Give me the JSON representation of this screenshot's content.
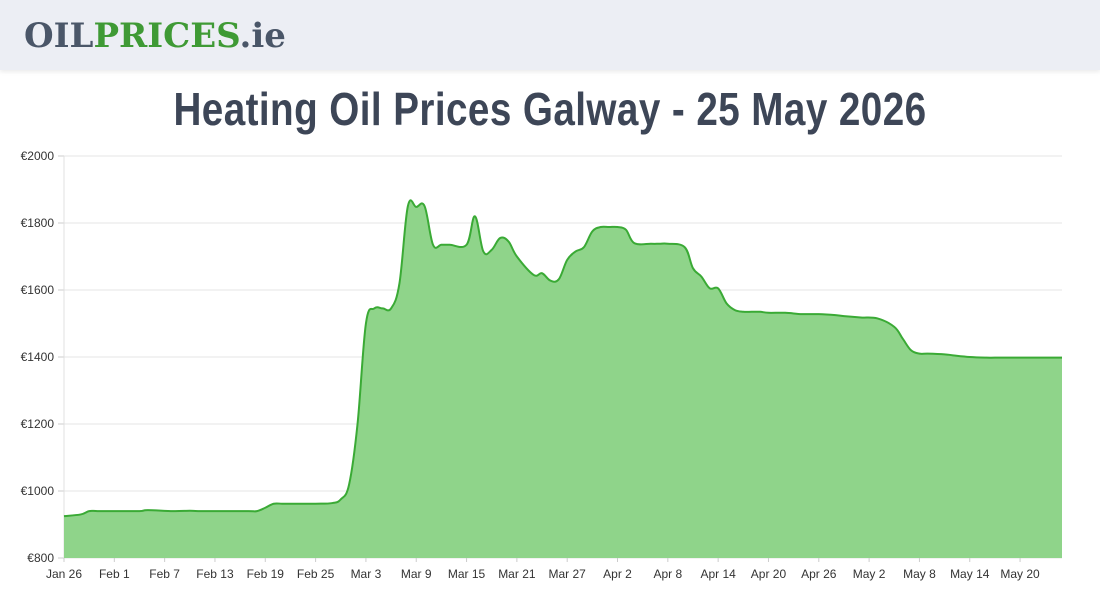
{
  "header": {
    "logo": {
      "part1": "OIL",
      "part2": "PRICES",
      "part3": ".ie"
    }
  },
  "page": {
    "title": "Heating Oil Prices Galway - 25 May 2026"
  },
  "colors": {
    "line": "#3aaa35",
    "fill": "#8fd48a",
    "grid": "#e6e6e6",
    "logo_green": "#3f9a35",
    "logo_gray": "#4a5668"
  },
  "chart_data": {
    "type": "area",
    "title": "",
    "xlabel": "",
    "ylabel": "",
    "ylim": [
      800,
      2000
    ],
    "yticks": [
      "€800",
      "€1000",
      "€1200",
      "€1400",
      "€1600",
      "€1800",
      "€2000"
    ],
    "ytick_values": [
      800,
      1000,
      1200,
      1400,
      1600,
      1800,
      2000
    ],
    "xticks": [
      "Jan 26",
      "Feb 1",
      "Feb 7",
      "Feb 13",
      "Feb 19",
      "Feb 25",
      "Mar 3",
      "Mar 9",
      "Mar 15",
      "Mar 21",
      "Mar 27",
      "Apr 2",
      "Apr 8",
      "Apr 14",
      "Apr 20",
      "Apr 26",
      "May 2",
      "May 8",
      "May 14",
      "May 20"
    ],
    "grid": true,
    "legend": "none",
    "series": [
      {
        "x": [
          "Jan 26",
          "Jan 28",
          "Jan 29",
          "Jan 30",
          "Feb 1",
          "Feb 4",
          "Feb 5",
          "Feb 8",
          "Feb 10",
          "Feb 11",
          "Feb 14",
          "Feb 17",
          "Feb 18",
          "Feb 19",
          "Feb 20",
          "Feb 21",
          "Feb 22",
          "Feb 25",
          "Feb 27",
          "Feb 28",
          "Mar 1",
          "Mar 2",
          "Mar 3",
          "Mar 4",
          "Mar 5",
          "Mar 6",
          "Mar 7",
          "Mar 8",
          "Mar 9",
          "Mar 10",
          "Mar 11",
          "Mar 12",
          "Mar 13",
          "Mar 15",
          "Mar 16",
          "Mar 17",
          "Mar 18",
          "Mar 19",
          "Mar 20",
          "Mar 21",
          "Mar 23",
          "Mar 24",
          "Mar 25",
          "Mar 26",
          "Mar 27",
          "Mar 28",
          "Mar 29",
          "Mar 30",
          "Mar 31",
          "Apr 1",
          "Apr 2",
          "Apr 3",
          "Apr 4",
          "Apr 6",
          "Apr 7",
          "Apr 8",
          "Apr 10",
          "Apr 11",
          "Apr 12",
          "Apr 13",
          "Apr 14",
          "Apr 15",
          "Apr 16",
          "Apr 17",
          "Apr 18",
          "Apr 19",
          "Apr 20",
          "Apr 22",
          "Apr 24",
          "Apr 26",
          "Apr 28",
          "Apr 29",
          "May 1",
          "May 3",
          "May 5",
          "May 6",
          "May 7",
          "May 8",
          "May 9",
          "May 11",
          "May 12",
          "May 14",
          "May 16",
          "May 17",
          "May 19",
          "May 21",
          "May 24",
          "May 25"
        ],
        "values": [
          925,
          930,
          940,
          940,
          940,
          940,
          943,
          940,
          941,
          940,
          940,
          940,
          940,
          950,
          962,
          962,
          962,
          962,
          964,
          975,
          1020,
          1200,
          1500,
          1545,
          1545,
          1545,
          1620,
          1850,
          1848,
          1850,
          1735,
          1735,
          1735,
          1735,
          1820,
          1715,
          1720,
          1755,
          1745,
          1700,
          1645,
          1650,
          1628,
          1632,
          1690,
          1715,
          1728,
          1775,
          1788,
          1788,
          1788,
          1780,
          1740,
          1738,
          1738,
          1738,
          1728,
          1665,
          1640,
          1605,
          1605,
          1560,
          1540,
          1535,
          1535,
          1535,
          1532,
          1532,
          1528,
          1528,
          1525,
          1522,
          1518,
          1515,
          1490,
          1455,
          1420,
          1410,
          1410,
          1408,
          1405,
          1400,
          1398,
          1398,
          1398,
          1398,
          1398,
          1398
        ]
      }
    ]
  }
}
